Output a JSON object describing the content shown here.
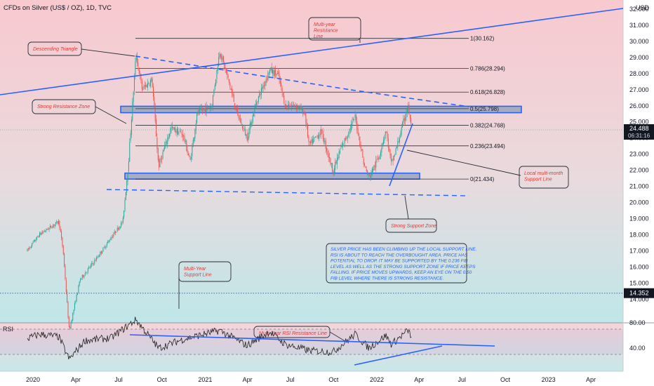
{
  "header": {
    "title": "CFDs on Silver (US$ / OZ), 1D, TVC"
  },
  "price_axis": {
    "currency": "USD",
    "ticks": [
      "32.000",
      "31.000",
      "30.000",
      "29.000",
      "28.000",
      "27.000",
      "26.000",
      "25.000",
      "24.000",
      "23.000",
      "22.000",
      "21.000",
      "20.000",
      "19.000",
      "18.000",
      "17.000",
      "16.000",
      "15.000",
      "14.000"
    ],
    "last_price": "24.488",
    "countdown": "06:31:16",
    "support_badge": "14.352"
  },
  "rsi_axis": {
    "ticks": [
      "80.00",
      "40.00"
    ]
  },
  "time_axis": {
    "ticks": [
      "2020",
      "Apr",
      "Jul",
      "Oct",
      "2021",
      "Apr",
      "Jul",
      "Oct",
      "2022",
      "Apr",
      "Jul",
      "Oct",
      "2023",
      "Apr"
    ]
  },
  "rsi": {
    "label": "RSI"
  },
  "fib_levels": [
    {
      "label": "1(30.162)",
      "price": 30.162
    },
    {
      "label": "0.786(28.294)",
      "price": 28.294
    },
    {
      "label": "0.618(26.828)",
      "price": 26.828
    },
    {
      "label": "0.5(25.798)",
      "price": 25.798
    },
    {
      "label": "0.382(24.768)",
      "price": 24.768
    },
    {
      "label": "0.236(23.494)",
      "price": 23.494
    },
    {
      "label": "0(21.434)",
      "price": 21.434
    }
  ],
  "annotations": {
    "multi_year_resistance": "Multi-year Resistance Line",
    "descending_triangle": "Descending Triangle",
    "strong_resistance_zone": "Strong Resistance Zone",
    "local_support": "Local multi-month Support Line",
    "strong_support_zone": "Strong Support Zone",
    "multi_year_support": "Multi-Year Support Line",
    "rsi_resistance": "Multi-Year RSI Resistance Line",
    "commentary": "SILVER PRICE HAS BEEN CLIMBING UP THE LOCAL SUPPORT LINE. RSI IS ABOUT TO REACH THE OVERBOUGHT AREA. PRICE HAS POTENTIAL TO DROP. IT MAY BE SUPPORTED BY THE 0.236 FIB LEVEL AS WELL AS THE STRONG SUPPORT ZONE IF PRICE KEEPS FALLING. IF PRICE MOVES UPWARDS, KEEP AN EYE ON THE 0.50 FIB LEVEL WHERE THERE IS STRONG RESISTANCE."
  },
  "colors": {
    "bull": "#26a69a",
    "bear": "#ef5350",
    "trend": "#2962ff",
    "zone_fill": "#9aa4b8",
    "annotation_text": "#e53935",
    "commentary_text": "#2962ff",
    "rsi_line": "#222222",
    "label_bg": "#131722"
  },
  "chart_data": {
    "type": "candlestick",
    "symbol": "CFDs on Silver (US$ / OZ)",
    "interval": "1D",
    "y_axis_range": [
      14.0,
      32.6
    ],
    "x_axis_range": [
      "2019-12",
      "2023-06"
    ],
    "price_path": [
      [
        "2019-12-20",
        17.0
      ],
      [
        "2020-01-15",
        18.0
      ],
      [
        "2020-02-25",
        18.8
      ],
      [
        "2020-03-05",
        17.0
      ],
      [
        "2020-03-18",
        12.0
      ],
      [
        "2020-04-10",
        15.2
      ],
      [
        "2020-05-15",
        16.5
      ],
      [
        "2020-06-15",
        17.8
      ],
      [
        "2020-07-10",
        18.8
      ],
      [
        "2020-07-22",
        22.5
      ],
      [
        "2020-08-07",
        29.2
      ],
      [
        "2020-08-20",
        27.0
      ],
      [
        "2020-09-10",
        27.6
      ],
      [
        "2020-09-24",
        22.2
      ],
      [
        "2020-10-20",
        24.6
      ],
      [
        "2020-11-15",
        24.2
      ],
      [
        "2020-11-30",
        22.5
      ],
      [
        "2020-12-15",
        25.5
      ],
      [
        "2021-01-15",
        26.0
      ],
      [
        "2021-02-01",
        29.4
      ],
      [
        "2021-02-20",
        27.5
      ],
      [
        "2021-03-10",
        25.5
      ],
      [
        "2021-03-31",
        24.0
      ],
      [
        "2021-04-20",
        26.2
      ],
      [
        "2021-05-18",
        28.2
      ],
      [
        "2021-06-05",
        27.9
      ],
      [
        "2021-06-20",
        26.0
      ],
      [
        "2021-07-15",
        26.0
      ],
      [
        "2021-08-01",
        25.5
      ],
      [
        "2021-08-10",
        23.5
      ],
      [
        "2021-09-05",
        24.4
      ],
      [
        "2021-09-30",
        21.9
      ],
      [
        "2021-10-15",
        23.2
      ],
      [
        "2021-11-16",
        25.3
      ],
      [
        "2021-12-05",
        22.3
      ],
      [
        "2021-12-15",
        21.5
      ],
      [
        "2022-01-05",
        22.8
      ],
      [
        "2022-01-20",
        24.5
      ],
      [
        "2022-02-01",
        22.3
      ],
      [
        "2022-02-15",
        23.7
      ],
      [
        "2022-03-08",
        26.0
      ],
      [
        "2022-03-16",
        24.5
      ]
    ],
    "current_price": 24.488,
    "fib_levels": [
      {
        "ratio": 1,
        "price": 30.162
      },
      {
        "ratio": 0.786,
        "price": 28.294
      },
      {
        "ratio": 0.618,
        "price": 26.828
      },
      {
        "ratio": 0.5,
        "price": 25.798
      },
      {
        "ratio": 0.382,
        "price": 24.768
      },
      {
        "ratio": 0.236,
        "price": 23.494
      },
      {
        "ratio": 0,
        "price": 21.434
      }
    ],
    "resistance_zone": [
      25.55,
      25.95
    ],
    "support_zone": [
      21.43,
      21.8
    ],
    "multi_year_support": 14.352,
    "rsi": {
      "ticks": [
        80,
        40
      ],
      "levels": [
        70,
        30
      ],
      "path": [
        [
          "2019-12-20",
          55
        ],
        [
          "2020-01-15",
          62
        ],
        [
          "2020-02-25",
          58
        ],
        [
          "2020-03-18",
          22
        ],
        [
          "2020-04-20",
          52
        ],
        [
          "2020-06-15",
          56
        ],
        [
          "2020-08-07",
          85
        ],
        [
          "2020-09-24",
          40
        ],
        [
          "2020-11-15",
          54
        ],
        [
          "2021-02-01",
          68
        ],
        [
          "2021-03-31",
          44
        ],
        [
          "2021-05-18",
          66
        ],
        [
          "2021-06-20",
          46
        ],
        [
          "2021-08-10",
          36
        ],
        [
          "2021-09-30",
          34
        ],
        [
          "2021-11-16",
          62
        ],
        [
          "2021-12-15",
          40
        ],
        [
          "2022-01-20",
          60
        ],
        [
          "2022-02-01",
          46
        ],
        [
          "2022-03-08",
          68
        ],
        [
          "2022-03-16",
          58
        ]
      ],
      "current": 58
    }
  }
}
